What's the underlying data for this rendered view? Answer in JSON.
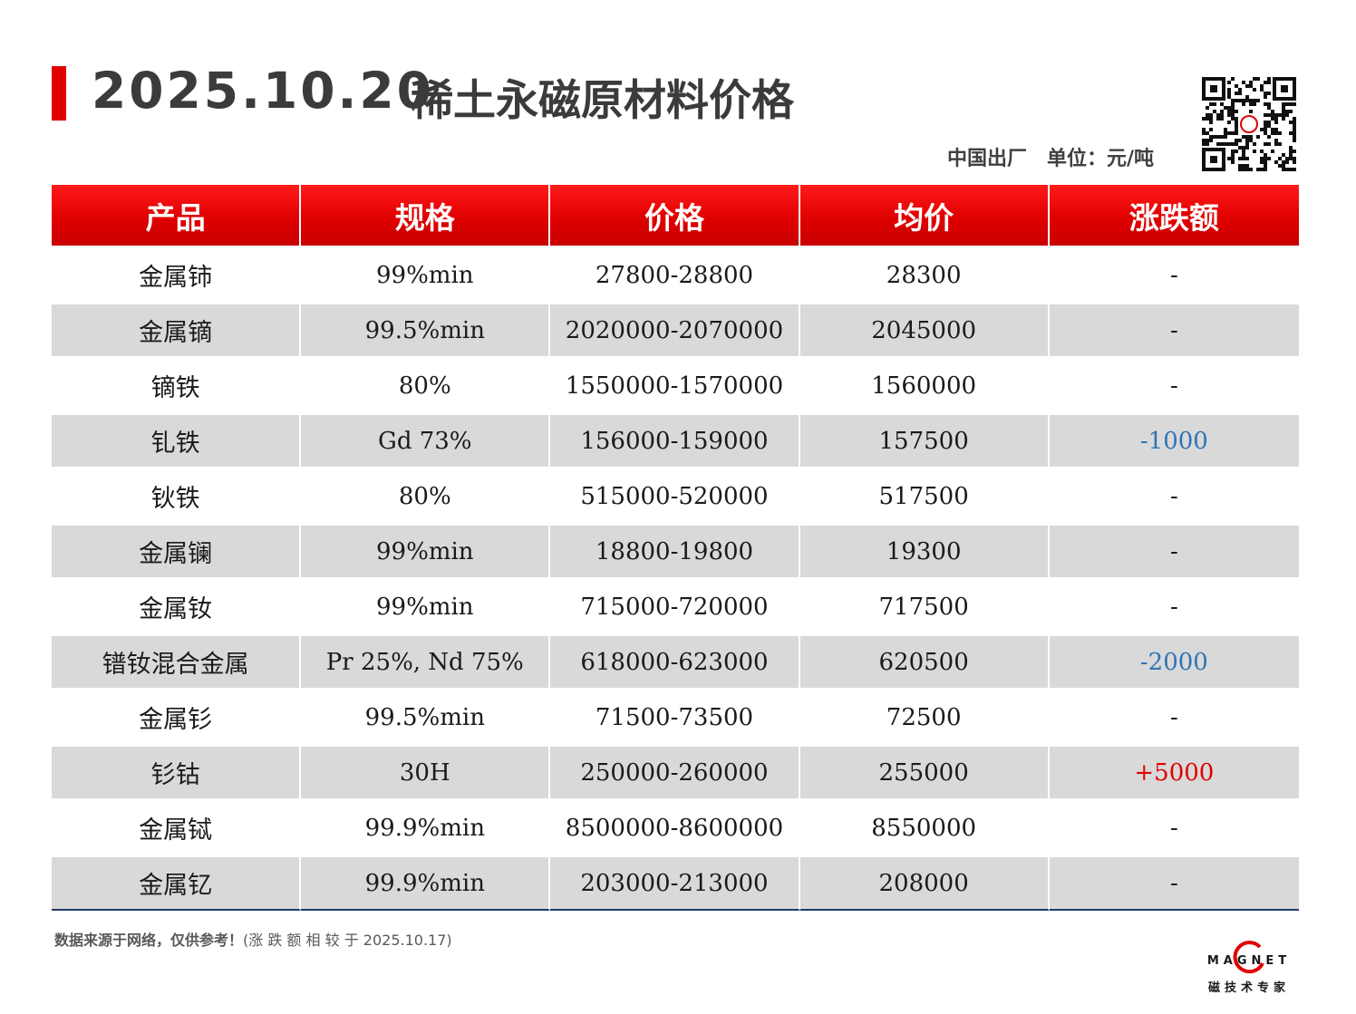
{
  "header": {
    "date": "2025.10.20",
    "title": "稀土永磁原材料价格",
    "origin": "中国出厂",
    "unit": "单位：元/吨"
  },
  "table": {
    "headers": [
      "产品",
      "规格",
      "价格",
      "均价",
      "涨跌额"
    ],
    "rows": [
      {
        "product": "金属铈",
        "spec": "99%min",
        "price": "27800-28800",
        "avg": "28300",
        "change": "-"
      },
      {
        "product": "金属镝",
        "spec": "99.5%min",
        "price": "2020000-2070000",
        "avg": "2045000",
        "change": "-"
      },
      {
        "product": "镝铁",
        "spec": "80%",
        "price": "1550000-1570000",
        "avg": "1560000",
        "change": "-"
      },
      {
        "product": "钆铁",
        "spec": "Gd 73%",
        "price": "156000-159000",
        "avg": "157500",
        "change": "-1000"
      },
      {
        "product": "钬铁",
        "spec": "80%",
        "price": "515000-520000",
        "avg": "517500",
        "change": "-"
      },
      {
        "product": "金属镧",
        "spec": "99%min",
        "price": "18800-19800",
        "avg": "19300",
        "change": "-"
      },
      {
        "product": "金属钕",
        "spec": "99%min",
        "price": "715000-720000",
        "avg": "717500",
        "change": "-"
      },
      {
        "product": "镨钕混合金属",
        "spec": "Pr 25%, Nd 75%",
        "price": "618000-623000",
        "avg": "620500",
        "change": "-2000"
      },
      {
        "product": "金属钐",
        "spec": "99.5%min",
        "price": "71500-73500",
        "avg": "72500",
        "change": "-"
      },
      {
        "product": "钐钴",
        "spec": "30H",
        "price": "250000-260000",
        "avg": "255000",
        "change": "+5000"
      },
      {
        "product": "金属铽",
        "spec": "99.9%min",
        "price": "8500000-8600000",
        "avg": "8550000",
        "change": "-"
      },
      {
        "product": "金属钇",
        "spec": "99.9%min",
        "price": "203000-213000",
        "avg": "208000",
        "change": "-"
      }
    ]
  },
  "footer": {
    "note": "数据来源于网络，仅供参考！",
    "compare": "(涨 跌 额 相 较 于 2025.10.17)"
  },
  "logo": {
    "word": "MAGNET",
    "subtitle": "磁技术专家"
  },
  "colors": {
    "accent": "#e00000",
    "row_alt": "#d9d9d9",
    "change_up": "#e00000",
    "change_down": "#2e75b6"
  }
}
